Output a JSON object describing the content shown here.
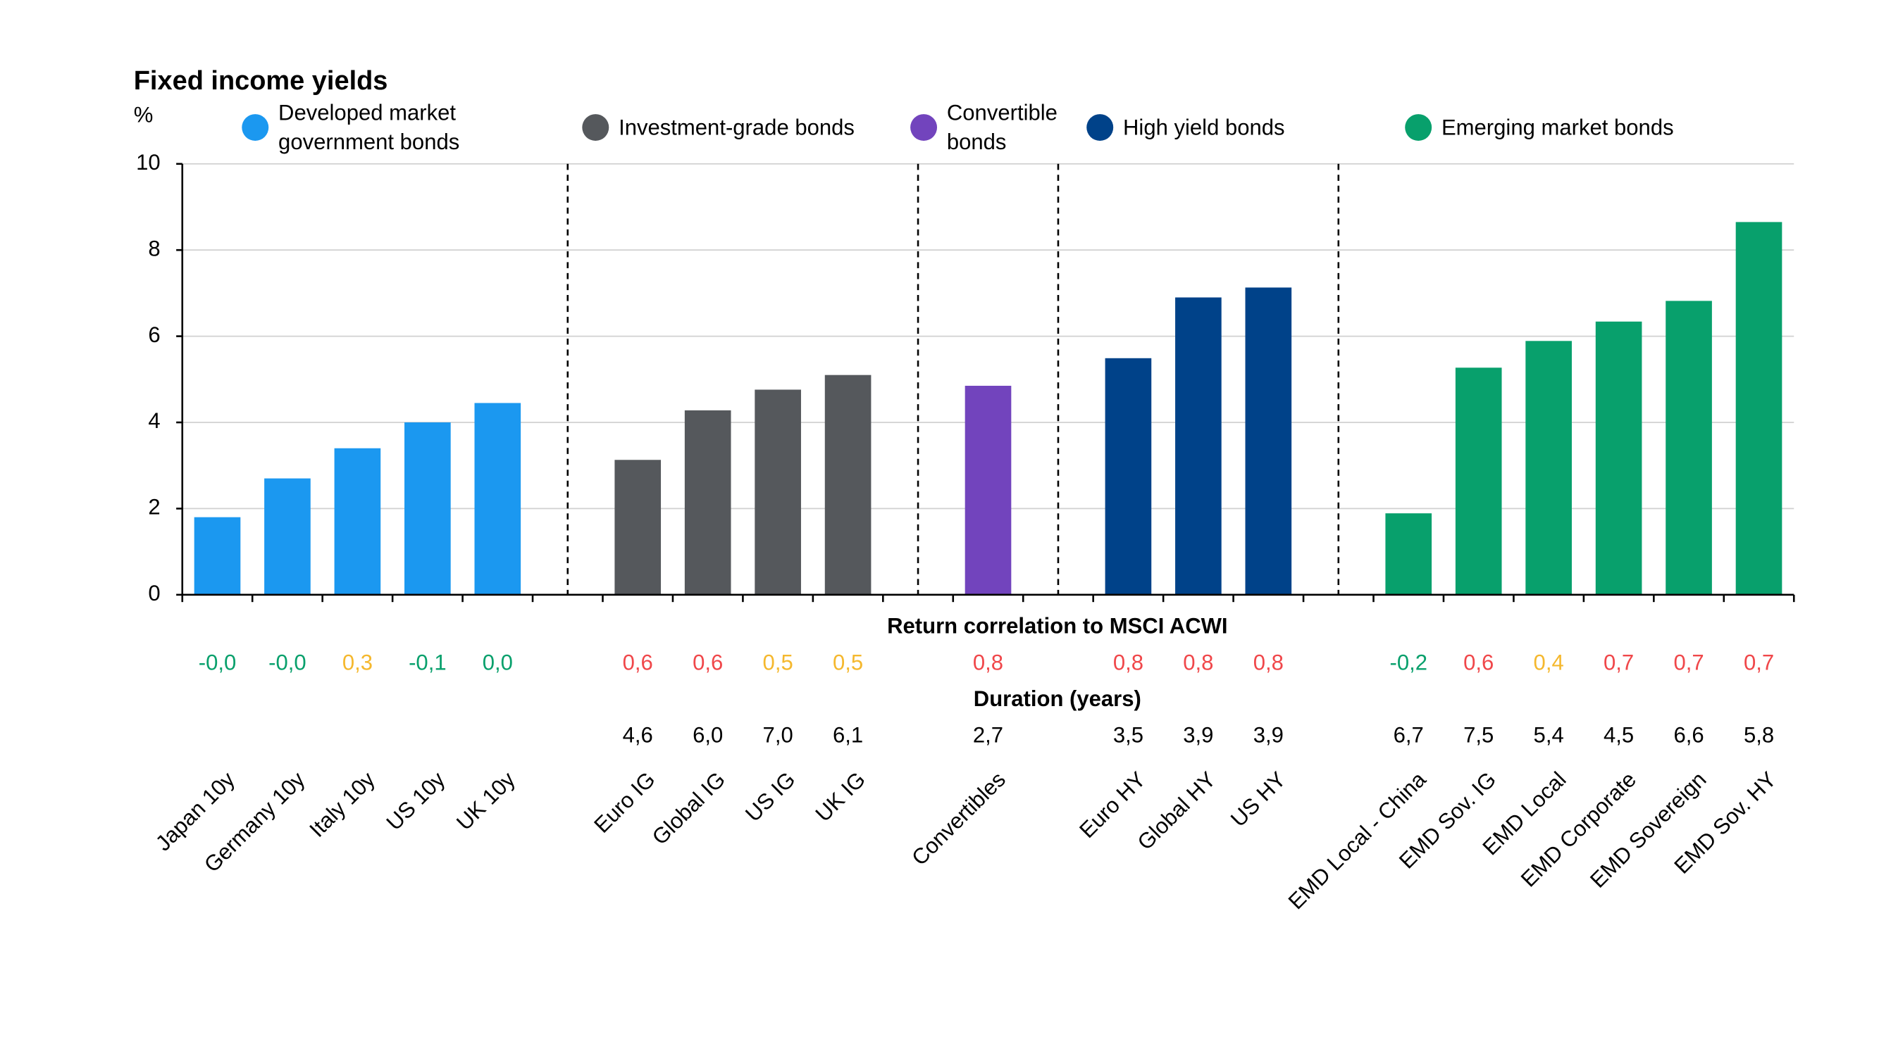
{
  "chart_data": {
    "type": "bar",
    "title": "Fixed income yields",
    "y_label": "%",
    "categories": [
      "Japan 10y",
      "Germany 10y",
      "Italy 10y",
      "US 10y",
      "UK 10y",
      null,
      "Euro IG",
      "Global IG",
      "US IG",
      "UK IG",
      null,
      "Convertibles",
      null,
      "Euro HY",
      "Global HY",
      "US HY",
      null,
      "EMD Local - China",
      "EMD Sov. IG",
      "EMD Local",
      "EMD Corporate",
      "EMD Sovereign",
      "EMD Sov. HY"
    ],
    "series": [
      {
        "name": "Developed market government bonds",
        "color": "#1b98f0",
        "values": [
          1.8,
          2.7,
          3.4,
          4.0,
          4.45,
          null,
          null,
          null,
          null,
          null,
          null,
          null,
          null,
          null,
          null,
          null,
          null,
          null,
          null,
          null,
          null,
          null,
          null
        ]
      },
      {
        "name": "Investment-grade bonds",
        "color": "#55585c",
        "values": [
          null,
          null,
          null,
          null,
          null,
          null,
          3.13,
          4.28,
          4.76,
          5.1,
          null,
          null,
          null,
          null,
          null,
          null,
          null,
          null,
          null,
          null,
          null,
          null,
          null
        ]
      },
      {
        "name": "Convertible bonds",
        "color": "#7244bd",
        "values": [
          null,
          null,
          null,
          null,
          null,
          null,
          null,
          null,
          null,
          null,
          null,
          4.85,
          null,
          null,
          null,
          null,
          null,
          null,
          null,
          null,
          null,
          null,
          null
        ]
      },
      {
        "name": "High yield bonds",
        "color": "#004289",
        "values": [
          null,
          null,
          null,
          null,
          null,
          null,
          null,
          null,
          null,
          null,
          null,
          null,
          null,
          5.49,
          6.9,
          7.13,
          null,
          null,
          null,
          null,
          null,
          null,
          null
        ]
      },
      {
        "name": "Emerging market bonds",
        "color": "#08a06c",
        "values": [
          null,
          null,
          null,
          null,
          null,
          null,
          null,
          null,
          null,
          null,
          null,
          null,
          null,
          null,
          null,
          null,
          null,
          1.89,
          5.27,
          5.89,
          6.34,
          6.82,
          8.65
        ]
      }
    ],
    "ylim": [
      0,
      10
    ],
    "yticks": [
      0,
      2,
      4,
      6,
      8,
      10
    ],
    "grid": true,
    "correlation": {
      "title": "Return correlation to MSCI ACWI",
      "values": [
        -0.0,
        -0.0,
        0.3,
        -0.1,
        0.0,
        null,
        0.6,
        0.6,
        0.5,
        0.5,
        null,
        0.8,
        null,
        0.8,
        0.8,
        0.8,
        null,
        -0.2,
        0.6,
        0.4,
        0.7,
        0.7,
        0.7
      ],
      "value_labels": [
        "-0,0",
        "-0,0",
        "0,3",
        "-0,1",
        "0,0",
        null,
        "0,6",
        "0,6",
        "0,5",
        "0,5",
        null,
        "0,8",
        null,
        "0,8",
        "0,8",
        "0,8",
        null,
        "-0,2",
        "0,6",
        "0,4",
        "0,7",
        "0,7",
        "0,7"
      ],
      "colors": [
        "#08a06c",
        "#08a06c",
        "#f5b82e",
        "#08a06c",
        "#08a06c",
        null,
        "#f0474a",
        "#f0474a",
        "#f5b82e",
        "#f5b82e",
        null,
        "#f0474a",
        null,
        "#f0474a",
        "#f0474a",
        "#f0474a",
        null,
        "#08a06c",
        "#f0474a",
        "#f5b82e",
        "#f0474a",
        "#f0474a",
        "#f0474a"
      ]
    },
    "duration": {
      "title": "Duration (years)",
      "values": [
        null,
        null,
        null,
        null,
        null,
        null,
        4.6,
        6.0,
        7.0,
        6.1,
        null,
        2.7,
        null,
        3.5,
        3.9,
        3.9,
        null,
        6.7,
        7.5,
        5.4,
        4.5,
        6.6,
        5.8
      ],
      "value_labels": [
        null,
        null,
        null,
        null,
        null,
        null,
        "4,6",
        "6,0",
        "7,0",
        "6,1",
        null,
        "2,7",
        null,
        "3,5",
        "3,9",
        "3,9",
        null,
        "6,7",
        "7,5",
        "5,4",
        "4,5",
        "6,6",
        "5,8"
      ]
    }
  }
}
